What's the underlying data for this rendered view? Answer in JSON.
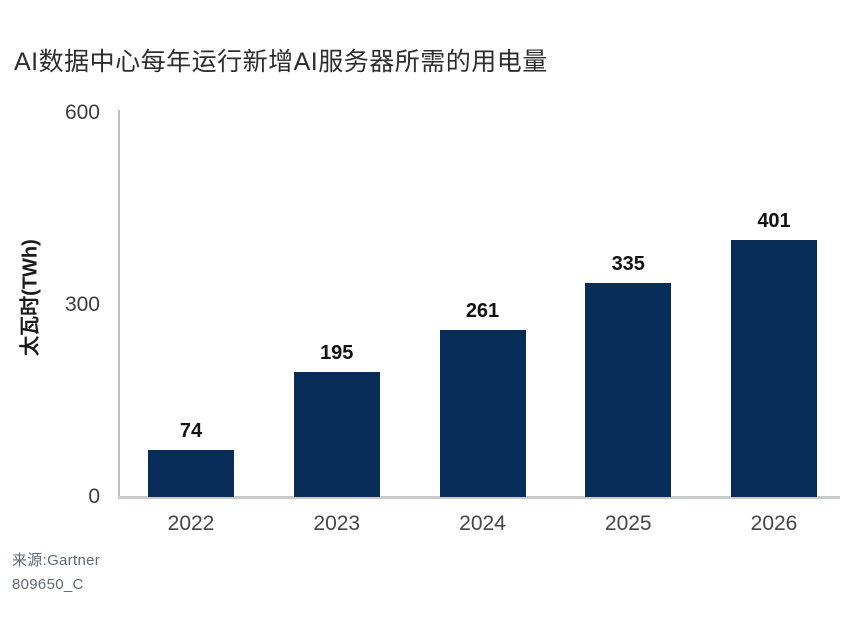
{
  "title": "AI数据中心每年运行新增AI服务器所需的用电量",
  "chart_data": {
    "type": "bar",
    "title": "AI数据中心每年运行新增AI服务器所需的用电量",
    "categories": [
      "2022",
      "2023",
      "2024",
      "2025",
      "2026"
    ],
    "values": [
      74,
      195,
      261,
      335,
      401
    ],
    "value_labels": [
      "74",
      "195",
      "261",
      "335",
      "401"
    ],
    "xlabel": "",
    "ylabel": "太瓦时(TWh)",
    "ylim": [
      0,
      600
    ],
    "yticks": [
      0,
      300,
      600
    ],
    "grid": false,
    "legend_position": "none",
    "bar_color": "#082d59"
  },
  "colors": {
    "background": "#ffffff",
    "bar": "#082d59",
    "title_text": "#2e2e2e",
    "tick_text": "#3d3d3d",
    "category_text": "#454545",
    "value_text": "#111111",
    "axis_line": "#bcbebe",
    "source_text": "#5e6a74"
  },
  "source": {
    "line1": "来源:Gartner",
    "line2": "809650_C"
  }
}
